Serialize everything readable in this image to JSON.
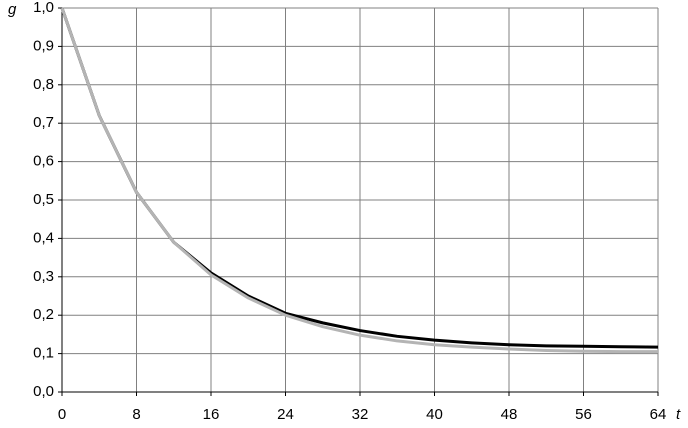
{
  "chart_data": {
    "type": "line",
    "x_label": "t",
    "y_label": "g",
    "x": [
      0,
      4,
      8,
      12,
      16,
      20,
      24,
      28,
      32,
      36,
      40,
      44,
      48,
      52,
      56,
      60,
      64
    ],
    "series": [
      {
        "color": "#000000",
        "values": [
          1.0,
          0.72,
          0.52,
          0.39,
          0.31,
          0.25,
          0.205,
          0.18,
          0.16,
          0.145,
          0.135,
          0.128,
          0.123,
          0.12,
          0.119,
          0.118,
          0.117
        ]
      },
      {
        "color": "#b4b4b4",
        "values": [
          1.0,
          0.72,
          0.52,
          0.39,
          0.305,
          0.245,
          0.2,
          0.17,
          0.148,
          0.133,
          0.123,
          0.117,
          0.112,
          0.108,
          0.106,
          0.105,
          0.105
        ]
      }
    ],
    "xlim": [
      0,
      64
    ],
    "xticks": [
      0,
      8,
      16,
      24,
      32,
      40,
      48,
      56,
      64
    ],
    "ylim": [
      0,
      1.0
    ],
    "yticks": [
      {
        "value": 0,
        "label": "0,0"
      },
      {
        "value": 0.1,
        "label": "0,1"
      },
      {
        "value": 0.2,
        "label": "0,2"
      },
      {
        "value": 0.3,
        "label": "0,3"
      },
      {
        "value": 0.4,
        "label": "0,4"
      },
      {
        "value": 0.5,
        "label": "0,5"
      },
      {
        "value": 0.6,
        "label": "0,6"
      },
      {
        "value": 0.7,
        "label": "0,7"
      },
      {
        "value": 0.8,
        "label": "0,8"
      },
      {
        "value": 0.9,
        "label": "0,9"
      },
      {
        "value": 1.0,
        "label": "1,0"
      }
    ],
    "grid": true
  }
}
